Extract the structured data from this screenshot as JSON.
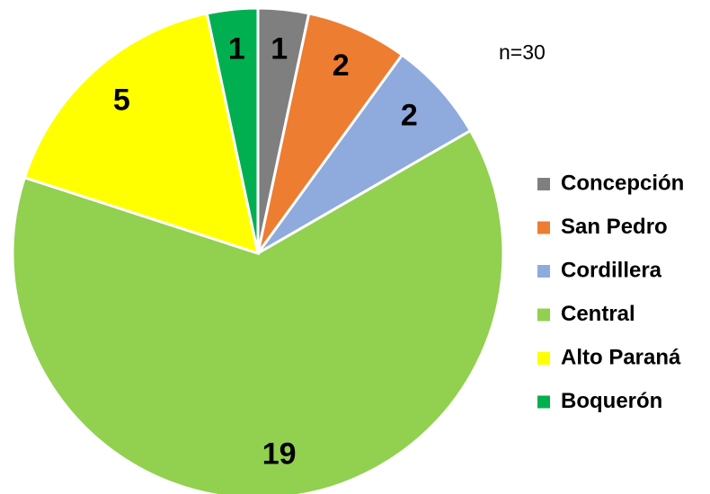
{
  "chart_data": {
    "type": "pie",
    "annotation": "n=30",
    "categories": [
      "Concepción",
      "San Pedro",
      "Cordillera",
      "Central",
      "Alto Paraná",
      "Boquerón"
    ],
    "values": [
      1,
      2,
      2,
      19,
      5,
      1
    ],
    "colors": [
      "#7f7f7f",
      "#ed7d31",
      "#8faadc",
      "#92d050",
      "#ffff00",
      "#00b050"
    ],
    "legend": "right"
  }
}
